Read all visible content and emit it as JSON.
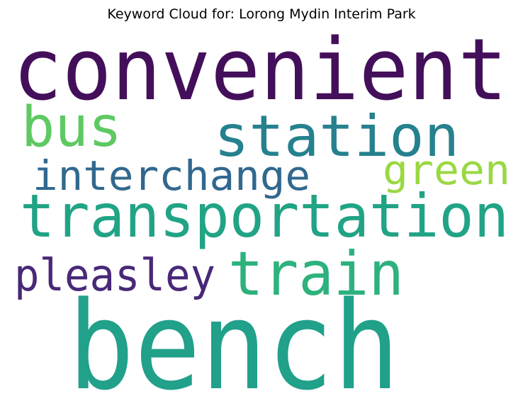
{
  "title": "Keyword Cloud for: Lorong Mydin Interim Park",
  "words": [
    {
      "text": "convenient",
      "color": "#440f5a"
    },
    {
      "text": "bus",
      "color": "#5ec962"
    },
    {
      "text": "station",
      "color": "#26818e"
    },
    {
      "text": "green",
      "color": "#9ad842"
    },
    {
      "text": "interchange",
      "color": "#31688e"
    },
    {
      "text": "transportation",
      "color": "#21a385"
    },
    {
      "text": "pleasley",
      "color": "#482878"
    },
    {
      "text": "train",
      "color": "#2db27d"
    },
    {
      "text": "bench",
      "color": "#21a08a"
    }
  ]
}
